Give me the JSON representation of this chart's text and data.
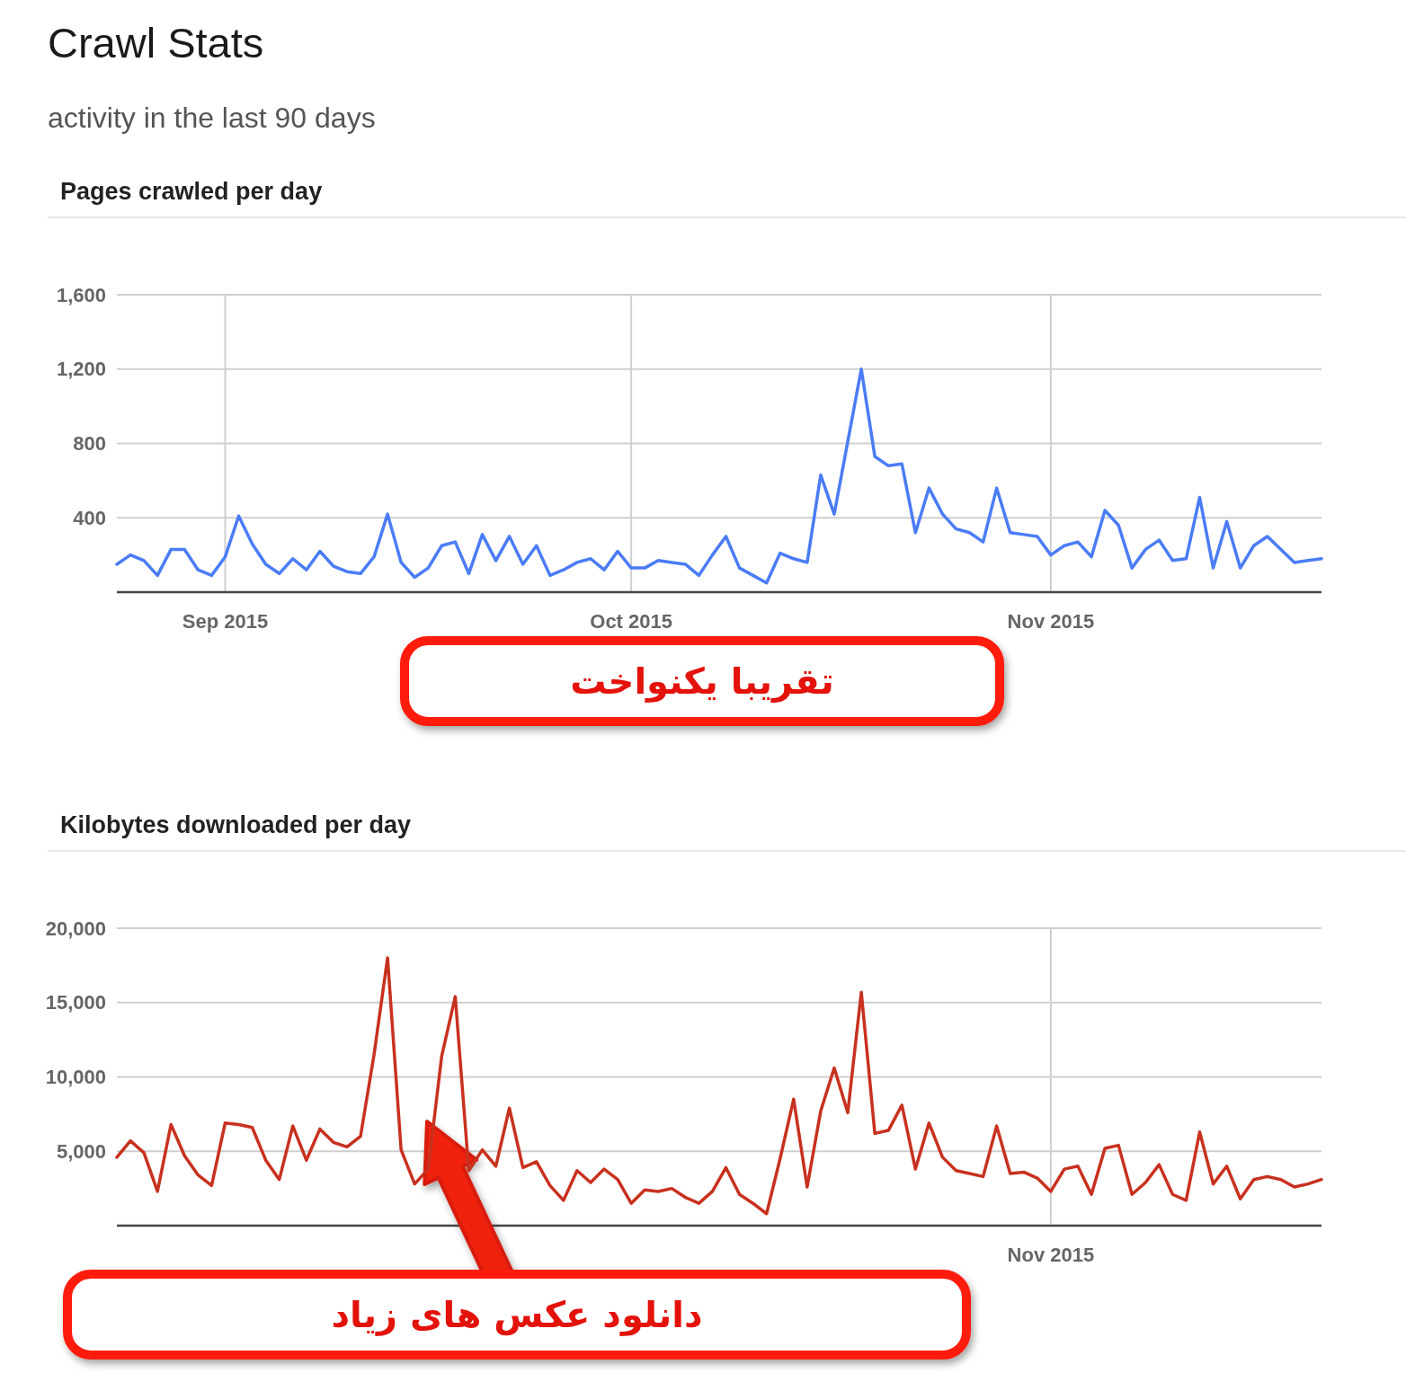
{
  "chart_data": [
    {
      "type": "other",
      "title": "Crawl Stats",
      "subtitle": "activity in the last 90 days"
    },
    {
      "type": "line",
      "title": "Pages crawled per day",
      "color": "#4a7cf5",
      "grid": true,
      "x": [
        "2015-08-24",
        "2015-08-25",
        "2015-08-26",
        "2015-08-27",
        "2015-08-28",
        "2015-08-29",
        "2015-08-30",
        "2015-08-31",
        "2015-09-01",
        "2015-09-02",
        "2015-09-03",
        "2015-09-04",
        "2015-09-05",
        "2015-09-06",
        "2015-09-07",
        "2015-09-08",
        "2015-09-09",
        "2015-09-10",
        "2015-09-11",
        "2015-09-12",
        "2015-09-13",
        "2015-09-14",
        "2015-09-15",
        "2015-09-16",
        "2015-09-17",
        "2015-09-18",
        "2015-09-19",
        "2015-09-20",
        "2015-09-21",
        "2015-09-22",
        "2015-09-23",
        "2015-09-24",
        "2015-09-25",
        "2015-09-26",
        "2015-09-27",
        "2015-09-28",
        "2015-09-29",
        "2015-09-30",
        "2015-10-01",
        "2015-10-02",
        "2015-10-03",
        "2015-10-04",
        "2015-10-05",
        "2015-10-06",
        "2015-10-07",
        "2015-10-08",
        "2015-10-09",
        "2015-10-10",
        "2015-10-11",
        "2015-10-12",
        "2015-10-13",
        "2015-10-14",
        "2015-10-15",
        "2015-10-16",
        "2015-10-17",
        "2015-10-18",
        "2015-10-19",
        "2015-10-20",
        "2015-10-21",
        "2015-10-22",
        "2015-10-23",
        "2015-10-24",
        "2015-10-25",
        "2015-10-26",
        "2015-10-27",
        "2015-10-28",
        "2015-10-29",
        "2015-10-30",
        "2015-10-31",
        "2015-11-01",
        "2015-11-02",
        "2015-11-03",
        "2015-11-04",
        "2015-11-05",
        "2015-11-06",
        "2015-11-07",
        "2015-11-08",
        "2015-11-09",
        "2015-11-10",
        "2015-11-11",
        "2015-11-12",
        "2015-11-13",
        "2015-11-14",
        "2015-11-15",
        "2015-11-16",
        "2015-11-17",
        "2015-11-18",
        "2015-11-19",
        "2015-11-20",
        "2015-11-21"
      ],
      "values": [
        150,
        200,
        170,
        90,
        230,
        230,
        120,
        90,
        190,
        410,
        260,
        150,
        100,
        180,
        120,
        220,
        140,
        110,
        100,
        190,
        420,
        160,
        80,
        130,
        250,
        270,
        100,
        310,
        170,
        300,
        150,
        250,
        90,
        120,
        160,
        180,
        120,
        220,
        130,
        130,
        170,
        160,
        150,
        90,
        200,
        300,
        130,
        90,
        50,
        210,
        180,
        160,
        630,
        420,
        810,
        1200,
        730,
        680,
        690,
        320,
        560,
        420,
        340,
        320,
        270,
        560,
        320,
        310,
        300,
        200,
        250,
        270,
        190,
        440,
        360,
        130,
        230,
        280,
        170,
        180,
        510,
        130,
        380,
        130,
        250,
        300,
        230,
        160,
        170,
        180
      ],
      "xlim": [
        "2015-08-24",
        "2015-11-21"
      ],
      "ylim": [
        0,
        1600
      ],
      "xticks": [
        {
          "value": "2015-09-01",
          "label": "Sep 2015"
        },
        {
          "value": "2015-10-01",
          "label": "Oct 2015"
        },
        {
          "value": "2015-11-01",
          "label": "Nov 2015"
        }
      ],
      "yticks": [
        {
          "value": 0,
          "label": null
        },
        400,
        800,
        {
          "value": 1200,
          "label": "1,200"
        },
        {
          "value": 1600,
          "label": "1,600"
        }
      ],
      "annotations": [
        "تقریبا یکنواخت"
      ]
    },
    {
      "type": "line",
      "title": "Kilobytes downloaded per day",
      "color": "#c8311f",
      "grid": true,
      "categories": [
        null,
        null,
        null,
        null,
        null,
        null,
        null,
        null,
        null,
        null,
        null,
        null,
        null,
        null,
        null,
        null,
        null,
        null,
        null,
        null,
        null,
        null,
        null,
        null,
        null,
        null,
        null,
        null,
        null,
        null,
        null,
        null,
        null,
        null,
        null,
        null,
        null,
        null,
        null,
        null,
        null,
        null,
        null,
        null,
        null,
        null,
        null,
        null,
        null,
        null,
        null,
        null,
        null,
        null,
        null,
        null,
        null,
        null,
        null,
        null,
        null,
        null,
        null,
        null,
        null,
        null,
        null,
        null,
        null,
        "Nov 2015",
        null,
        null,
        null,
        null,
        null,
        null,
        null,
        null,
        null,
        null,
        null,
        null,
        null,
        null,
        null,
        null,
        null,
        null,
        null,
        null
      ],
      "values": [
        4600,
        5700,
        4900,
        2300,
        6800,
        4700,
        3400,
        2700,
        6900,
        6800,
        6600,
        4400,
        3100,
        6700,
        4400,
        6500,
        5600,
        5300,
        6000,
        11500,
        18000,
        5100,
        2800,
        3800,
        11400,
        15400,
        3700,
        5100,
        4000,
        7900,
        3900,
        4300,
        2700,
        1700,
        3700,
        2900,
        3800,
        3100,
        1500,
        2400,
        2300,
        2500,
        1900,
        1500,
        2300,
        3900,
        2100,
        1500,
        800,
        4500,
        8500,
        2600,
        7700,
        10600,
        7600,
        15700,
        6200,
        6400,
        8100,
        3800,
        6900,
        4600,
        3700,
        3500,
        3300,
        6700,
        3500,
        3600,
        3200,
        2300,
        3800,
        4000,
        2100,
        5200,
        5400,
        2100,
        2900,
        4100,
        2100,
        1700,
        6300,
        2800,
        4000,
        1800,
        3100,
        3300,
        3100,
        2600,
        2800,
        3100
      ],
      "ylim": [
        0,
        20000
      ],
      "yticks": [
        {
          "value": 0,
          "label": null
        },
        {
          "value": 5000,
          "label": "5,000"
        },
        {
          "value": 10000,
          "label": "10,000"
        },
        {
          "value": 15000,
          "label": "15,000"
        },
        {
          "value": 20000,
          "label": "20,000"
        }
      ],
      "annotations": [
        "دانلود عکس های زیاد"
      ]
    }
  ]
}
